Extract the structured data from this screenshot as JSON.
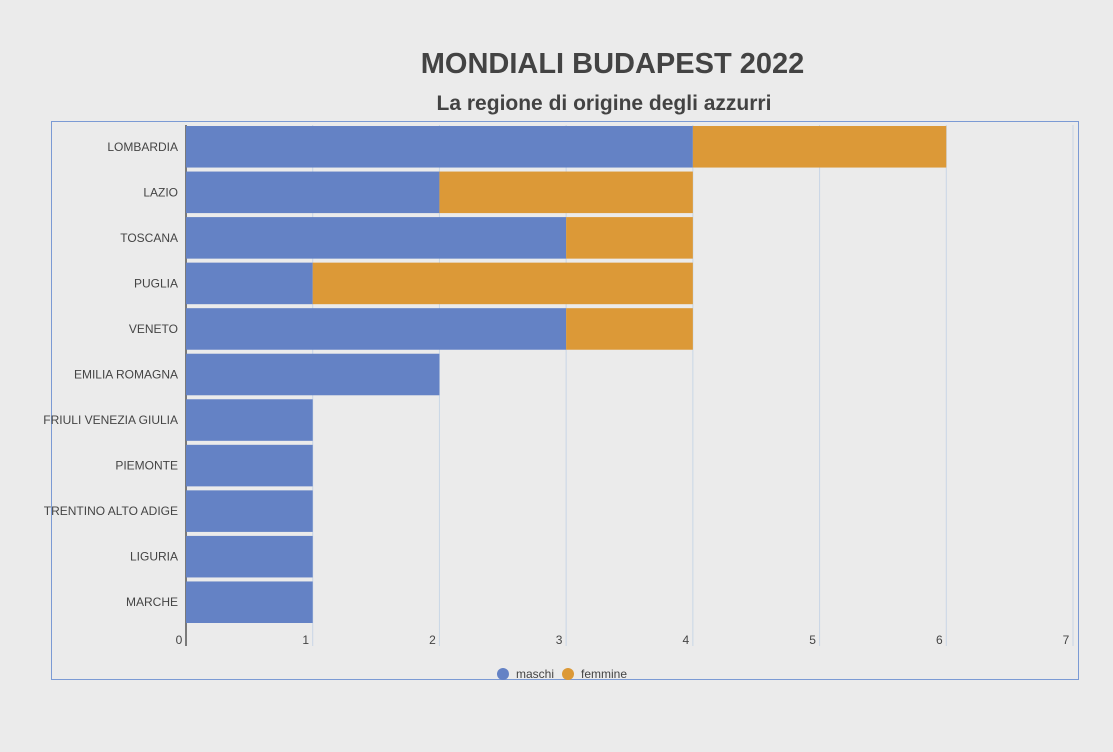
{
  "chart_data": {
    "type": "bar",
    "orientation": "horizontal",
    "stacked": true,
    "title": "MONDIALI BUDAPEST 2022",
    "subtitle": "La regione di origine degli azzurri",
    "categories": [
      "LOMBARDIA",
      "LAZIO",
      "TOSCANA",
      "PUGLIA",
      "VENETO",
      "EMILIA ROMAGNA",
      "FRIULI VENEZIA GIULIA",
      "PIEMONTE",
      "TRENTINO ALTO ADIGE",
      "LIGURIA",
      "MARCHE"
    ],
    "series": [
      {
        "name": "maschi",
        "color": "#6482c5",
        "values": [
          4,
          2,
          3,
          1,
          3,
          2,
          1,
          1,
          1,
          1,
          1
        ]
      },
      {
        "name": "femmine",
        "color": "#dc9937",
        "values": [
          2,
          2,
          1,
          3,
          1,
          0,
          0,
          0,
          0,
          0,
          0
        ]
      }
    ],
    "xlim": [
      0,
      7
    ],
    "xticks": [
      0,
      1,
      2,
      3,
      4,
      5,
      6,
      7
    ],
    "xlabel": "",
    "ylabel": "",
    "grid": true,
    "legend_position": "bottom"
  }
}
